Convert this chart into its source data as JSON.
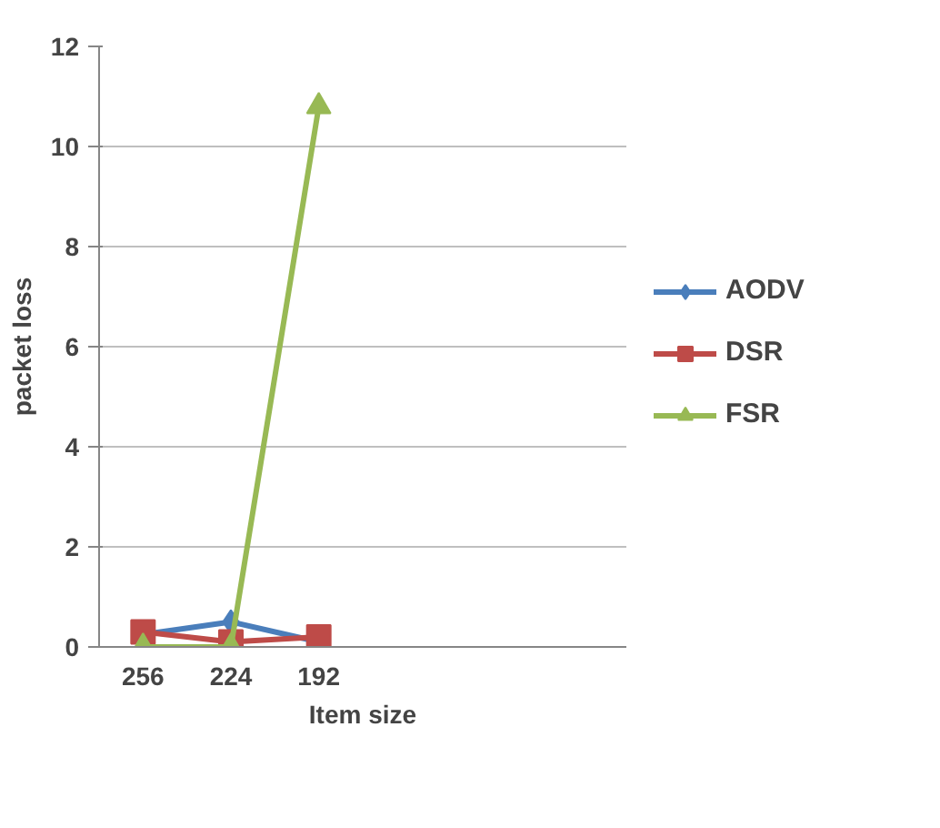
{
  "chart_data": {
    "type": "line",
    "xlabel": "Item size",
    "ylabel": "packet loss",
    "categories": [
      "256",
      "224",
      "192",
      null,
      null,
      null
    ],
    "series": [
      {
        "name": "AODV",
        "color": "#4a7ebb",
        "marker": "diamond",
        "values": [
          0.25,
          0.5,
          0.1,
          null,
          null,
          null
        ]
      },
      {
        "name": "DSR",
        "color": "#be4b48",
        "marker": "square",
        "values": [
          0.3,
          0.1,
          0.2,
          null,
          null,
          null
        ]
      },
      {
        "name": "FSR",
        "color": "#98b954",
        "marker": "triangle",
        "values": [
          0,
          0,
          10.8,
          null,
          null,
          null
        ]
      }
    ],
    "ylim": [
      0,
      12
    ],
    "yticks": [
      0,
      2,
      4,
      6,
      8,
      10,
      12
    ],
    "grid": "y",
    "legend": "right"
  }
}
